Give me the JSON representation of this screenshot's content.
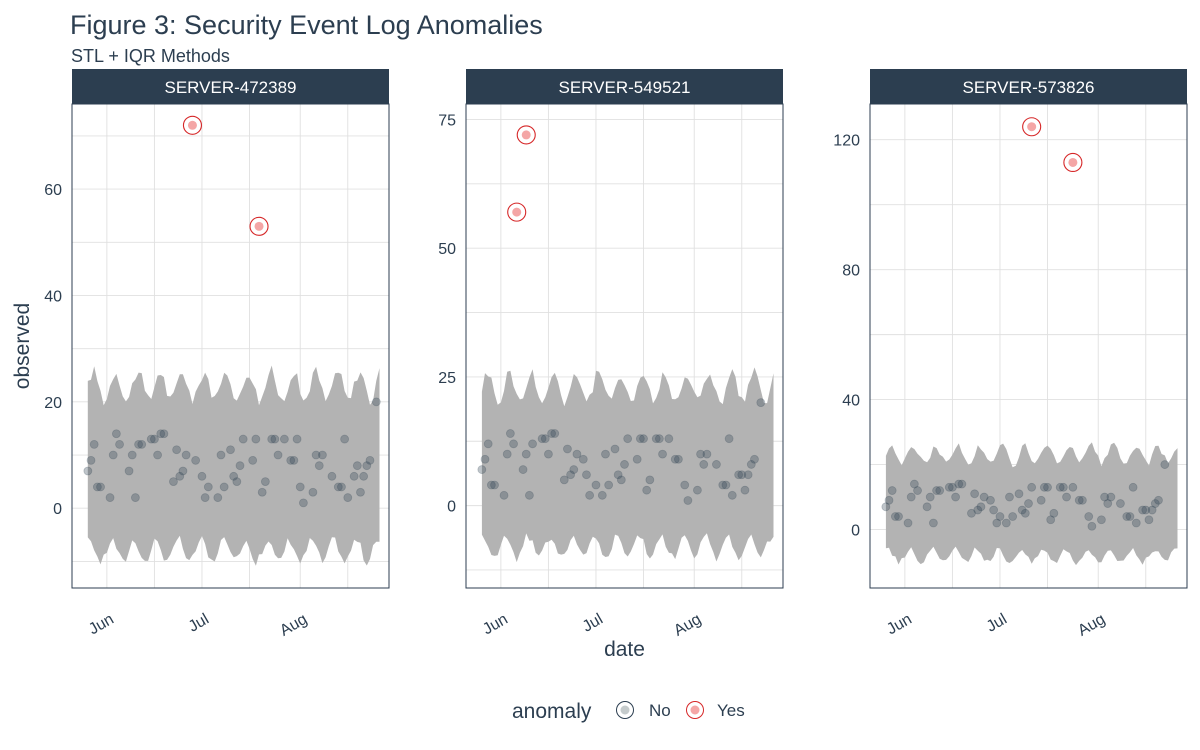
{
  "title": "Figure 3: Security Event Log Anomalies",
  "subtitle": "STL + IQR Methods",
  "colors": {
    "strip_bg": "#2c3e50",
    "band": "#b3b3b3",
    "normal_point": "#2c3e50",
    "anomaly_ring": "#d62728",
    "anomaly_fill": "#f4a6a6",
    "grid": "#e0e0e0",
    "text": "#2c3e50"
  },
  "legend": {
    "title": "anomaly",
    "items": [
      {
        "label": "No",
        "kind": "normal"
      },
      {
        "label": "Yes",
        "kind": "anomaly"
      }
    ]
  },
  "chart_data": [
    {
      "type": "scatter",
      "panel": "SERVER-472389",
      "xlabel": "",
      "ylabel": "observed",
      "x_range": [
        "2023-05-21",
        "2023-08-29"
      ],
      "x_ticks": [
        {
          "label": "Jun",
          "date": "2023-06-01"
        },
        {
          "label": "Jul",
          "date": "2023-07-01"
        },
        {
          "label": "Aug",
          "date": "2023-08-01"
        }
      ],
      "ylim": [
        -15,
        76
      ],
      "y_ticks": [
        0,
        20,
        40,
        60
      ],
      "band": {
        "lower_range": [
          -11,
          -5
        ],
        "upper_range": [
          19,
          27
        ]
      },
      "points": [
        {
          "x": "2023-05-26",
          "y": 7
        },
        {
          "x": "2023-05-27",
          "y": 9
        },
        {
          "x": "2023-05-28",
          "y": 12
        },
        {
          "x": "2023-05-29",
          "y": 4
        },
        {
          "x": "2023-05-30",
          "y": 4
        },
        {
          "x": "2023-06-02",
          "y": 2
        },
        {
          "x": "2023-06-03",
          "y": 10
        },
        {
          "x": "2023-06-04",
          "y": 14
        },
        {
          "x": "2023-06-05",
          "y": 12
        },
        {
          "x": "2023-06-08",
          "y": 7
        },
        {
          "x": "2023-06-09",
          "y": 10
        },
        {
          "x": "2023-06-10",
          "y": 2
        },
        {
          "x": "2023-06-11",
          "y": 12
        },
        {
          "x": "2023-06-12",
          "y": 12
        },
        {
          "x": "2023-06-15",
          "y": 13
        },
        {
          "x": "2023-06-16",
          "y": 13
        },
        {
          "x": "2023-06-17",
          "y": 10
        },
        {
          "x": "2023-06-18",
          "y": 14
        },
        {
          "x": "2023-06-19",
          "y": 14
        },
        {
          "x": "2023-06-22",
          "y": 5
        },
        {
          "x": "2023-06-23",
          "y": 11
        },
        {
          "x": "2023-06-24",
          "y": 6
        },
        {
          "x": "2023-06-25",
          "y": 7
        },
        {
          "x": "2023-06-26",
          "y": 10
        },
        {
          "x": "2023-06-29",
          "y": 9
        },
        {
          "x": "2023-07-01",
          "y": 6
        },
        {
          "x": "2023-07-02",
          "y": 2
        },
        {
          "x": "2023-07-03",
          "y": 4
        },
        {
          "x": "2023-07-06",
          "y": 2
        },
        {
          "x": "2023-07-07",
          "y": 10
        },
        {
          "x": "2023-07-08",
          "y": 4
        },
        {
          "x": "2023-07-10",
          "y": 11
        },
        {
          "x": "2023-07-11",
          "y": 6
        },
        {
          "x": "2023-07-12",
          "y": 5
        },
        {
          "x": "2023-07-13",
          "y": 8
        },
        {
          "x": "2023-07-14",
          "y": 13
        },
        {
          "x": "2023-07-17",
          "y": 9
        },
        {
          "x": "2023-07-18",
          "y": 13
        },
        {
          "x": "2023-07-20",
          "y": 3
        },
        {
          "x": "2023-07-21",
          "y": 5
        },
        {
          "x": "2023-07-23",
          "y": 13
        },
        {
          "x": "2023-07-24",
          "y": 13
        },
        {
          "x": "2023-07-25",
          "y": 10
        },
        {
          "x": "2023-07-27",
          "y": 13
        },
        {
          "x": "2023-07-29",
          "y": 9
        },
        {
          "x": "2023-07-30",
          "y": 9
        },
        {
          "x": "2023-07-31",
          "y": 13
        },
        {
          "x": "2023-08-01",
          "y": 4
        },
        {
          "x": "2023-08-02",
          "y": 1
        },
        {
          "x": "2023-08-05",
          "y": 3
        },
        {
          "x": "2023-08-06",
          "y": 10
        },
        {
          "x": "2023-08-07",
          "y": 8
        },
        {
          "x": "2023-08-08",
          "y": 10
        },
        {
          "x": "2023-08-11",
          "y": 6
        },
        {
          "x": "2023-08-13",
          "y": 4
        },
        {
          "x": "2023-08-14",
          "y": 4
        },
        {
          "x": "2023-08-15",
          "y": 13
        },
        {
          "x": "2023-08-16",
          "y": 2
        },
        {
          "x": "2023-08-18",
          "y": 6
        },
        {
          "x": "2023-08-19",
          "y": 8
        },
        {
          "x": "2023-08-20",
          "y": 3
        },
        {
          "x": "2023-08-21",
          "y": 6
        },
        {
          "x": "2023-08-22",
          "y": 8
        },
        {
          "x": "2023-08-23",
          "y": 9
        },
        {
          "x": "2023-08-25",
          "y": 20
        }
      ],
      "anomalies": [
        {
          "x": "2023-06-28",
          "y": 72
        },
        {
          "x": "2023-07-19",
          "y": 53
        }
      ]
    },
    {
      "type": "scatter",
      "panel": "SERVER-549521",
      "xlabel": "date",
      "ylabel": "",
      "x_range": [
        "2023-05-21",
        "2023-08-29"
      ],
      "x_ticks": [
        {
          "label": "Jun",
          "date": "2023-06-01"
        },
        {
          "label": "Jul",
          "date": "2023-07-01"
        },
        {
          "label": "Aug",
          "date": "2023-08-01"
        }
      ],
      "ylim": [
        -16,
        78
      ],
      "y_ticks": [
        0,
        25,
        50,
        75
      ],
      "band": {
        "lower_range": [
          -11,
          -5
        ],
        "upper_range": [
          19,
          27
        ]
      },
      "points": [
        {
          "x": "2023-05-26",
          "y": 7
        },
        {
          "x": "2023-05-27",
          "y": 9
        },
        {
          "x": "2023-05-28",
          "y": 12
        },
        {
          "x": "2023-05-29",
          "y": 4
        },
        {
          "x": "2023-05-30",
          "y": 4
        },
        {
          "x": "2023-06-02",
          "y": 2
        },
        {
          "x": "2023-06-03",
          "y": 10
        },
        {
          "x": "2023-06-04",
          "y": 14
        },
        {
          "x": "2023-06-05",
          "y": 12
        },
        {
          "x": "2023-06-08",
          "y": 7
        },
        {
          "x": "2023-06-09",
          "y": 10
        },
        {
          "x": "2023-06-10",
          "y": 2
        },
        {
          "x": "2023-06-11",
          "y": 12
        },
        {
          "x": "2023-06-14",
          "y": 13
        },
        {
          "x": "2023-06-15",
          "y": 13
        },
        {
          "x": "2023-06-16",
          "y": 10
        },
        {
          "x": "2023-06-17",
          "y": 14
        },
        {
          "x": "2023-06-18",
          "y": 14
        },
        {
          "x": "2023-06-21",
          "y": 5
        },
        {
          "x": "2023-06-22",
          "y": 11
        },
        {
          "x": "2023-06-23",
          "y": 6
        },
        {
          "x": "2023-06-24",
          "y": 7
        },
        {
          "x": "2023-06-25",
          "y": 10
        },
        {
          "x": "2023-06-27",
          "y": 9
        },
        {
          "x": "2023-06-28",
          "y": 6
        },
        {
          "x": "2023-06-29",
          "y": 2
        },
        {
          "x": "2023-07-01",
          "y": 4
        },
        {
          "x": "2023-07-03",
          "y": 2
        },
        {
          "x": "2023-07-04",
          "y": 10
        },
        {
          "x": "2023-07-05",
          "y": 4
        },
        {
          "x": "2023-07-07",
          "y": 11
        },
        {
          "x": "2023-07-08",
          "y": 6
        },
        {
          "x": "2023-07-09",
          "y": 5
        },
        {
          "x": "2023-07-10",
          "y": 8
        },
        {
          "x": "2023-07-11",
          "y": 13
        },
        {
          "x": "2023-07-14",
          "y": 9
        },
        {
          "x": "2023-07-15",
          "y": 13
        },
        {
          "x": "2023-07-16",
          "y": 13
        },
        {
          "x": "2023-07-17",
          "y": 3
        },
        {
          "x": "2023-07-18",
          "y": 5
        },
        {
          "x": "2023-07-20",
          "y": 13
        },
        {
          "x": "2023-07-21",
          "y": 13
        },
        {
          "x": "2023-07-22",
          "y": 10
        },
        {
          "x": "2023-07-24",
          "y": 13
        },
        {
          "x": "2023-07-26",
          "y": 9
        },
        {
          "x": "2023-07-27",
          "y": 9
        },
        {
          "x": "2023-07-29",
          "y": 4
        },
        {
          "x": "2023-07-30",
          "y": 1
        },
        {
          "x": "2023-08-02",
          "y": 3
        },
        {
          "x": "2023-08-03",
          "y": 10
        },
        {
          "x": "2023-08-04",
          "y": 8
        },
        {
          "x": "2023-08-05",
          "y": 10
        },
        {
          "x": "2023-08-08",
          "y": 8
        },
        {
          "x": "2023-08-10",
          "y": 4
        },
        {
          "x": "2023-08-11",
          "y": 4
        },
        {
          "x": "2023-08-12",
          "y": 13
        },
        {
          "x": "2023-08-13",
          "y": 2
        },
        {
          "x": "2023-08-15",
          "y": 6
        },
        {
          "x": "2023-08-16",
          "y": 6
        },
        {
          "x": "2023-08-17",
          "y": 3
        },
        {
          "x": "2023-08-18",
          "y": 6
        },
        {
          "x": "2023-08-19",
          "y": 8
        },
        {
          "x": "2023-08-20",
          "y": 9
        },
        {
          "x": "2023-08-22",
          "y": 20
        }
      ],
      "anomalies": [
        {
          "x": "2023-06-06",
          "y": 57
        },
        {
          "x": "2023-06-09",
          "y": 72
        }
      ]
    },
    {
      "type": "scatter",
      "panel": "SERVER-573826",
      "xlabel": "",
      "ylabel": "",
      "x_range": [
        "2023-05-21",
        "2023-08-29"
      ],
      "x_ticks": [
        {
          "label": "Jun",
          "date": "2023-06-01"
        },
        {
          "label": "Jul",
          "date": "2023-07-01"
        },
        {
          "label": "Aug",
          "date": "2023-08-01"
        }
      ],
      "ylim": [
        -18,
        131
      ],
      "y_ticks": [
        0,
        40,
        80,
        120
      ],
      "band": {
        "lower_range": [
          -11,
          -5
        ],
        "upper_range": [
          19,
          27
        ]
      },
      "points": [
        {
          "x": "2023-05-26",
          "y": 7
        },
        {
          "x": "2023-05-27",
          "y": 9
        },
        {
          "x": "2023-05-28",
          "y": 12
        },
        {
          "x": "2023-05-29",
          "y": 4
        },
        {
          "x": "2023-05-30",
          "y": 4
        },
        {
          "x": "2023-06-02",
          "y": 2
        },
        {
          "x": "2023-06-03",
          "y": 10
        },
        {
          "x": "2023-06-04",
          "y": 14
        },
        {
          "x": "2023-06-05",
          "y": 12
        },
        {
          "x": "2023-06-08",
          "y": 7
        },
        {
          "x": "2023-06-09",
          "y": 10
        },
        {
          "x": "2023-06-10",
          "y": 2
        },
        {
          "x": "2023-06-11",
          "y": 12
        },
        {
          "x": "2023-06-12",
          "y": 12
        },
        {
          "x": "2023-06-15",
          "y": 13
        },
        {
          "x": "2023-06-16",
          "y": 13
        },
        {
          "x": "2023-06-17",
          "y": 10
        },
        {
          "x": "2023-06-18",
          "y": 14
        },
        {
          "x": "2023-06-19",
          "y": 14
        },
        {
          "x": "2023-06-22",
          "y": 5
        },
        {
          "x": "2023-06-23",
          "y": 11
        },
        {
          "x": "2023-06-24",
          "y": 6
        },
        {
          "x": "2023-06-25",
          "y": 7
        },
        {
          "x": "2023-06-26",
          "y": 10
        },
        {
          "x": "2023-06-28",
          "y": 9
        },
        {
          "x": "2023-06-29",
          "y": 6
        },
        {
          "x": "2023-06-30",
          "y": 2
        },
        {
          "x": "2023-07-01",
          "y": 4
        },
        {
          "x": "2023-07-03",
          "y": 2
        },
        {
          "x": "2023-07-04",
          "y": 10
        },
        {
          "x": "2023-07-05",
          "y": 4
        },
        {
          "x": "2023-07-07",
          "y": 11
        },
        {
          "x": "2023-07-08",
          "y": 6
        },
        {
          "x": "2023-07-09",
          "y": 5
        },
        {
          "x": "2023-07-10",
          "y": 8
        },
        {
          "x": "2023-07-11",
          "y": 13
        },
        {
          "x": "2023-07-14",
          "y": 9
        },
        {
          "x": "2023-07-15",
          "y": 13
        },
        {
          "x": "2023-07-16",
          "y": 13
        },
        {
          "x": "2023-07-17",
          "y": 3
        },
        {
          "x": "2023-07-18",
          "y": 5
        },
        {
          "x": "2023-07-20",
          "y": 13
        },
        {
          "x": "2023-07-21",
          "y": 13
        },
        {
          "x": "2023-07-22",
          "y": 10
        },
        {
          "x": "2023-07-24",
          "y": 13
        },
        {
          "x": "2023-07-26",
          "y": 9
        },
        {
          "x": "2023-07-27",
          "y": 9
        },
        {
          "x": "2023-07-29",
          "y": 4
        },
        {
          "x": "2023-07-30",
          "y": 1
        },
        {
          "x": "2023-08-02",
          "y": 3
        },
        {
          "x": "2023-08-03",
          "y": 10
        },
        {
          "x": "2023-08-04",
          "y": 8
        },
        {
          "x": "2023-08-05",
          "y": 10
        },
        {
          "x": "2023-08-08",
          "y": 8
        },
        {
          "x": "2023-08-10",
          "y": 4
        },
        {
          "x": "2023-08-11",
          "y": 4
        },
        {
          "x": "2023-08-12",
          "y": 13
        },
        {
          "x": "2023-08-13",
          "y": 2
        },
        {
          "x": "2023-08-15",
          "y": 6
        },
        {
          "x": "2023-08-16",
          "y": 6
        },
        {
          "x": "2023-08-17",
          "y": 3
        },
        {
          "x": "2023-08-18",
          "y": 6
        },
        {
          "x": "2023-08-19",
          "y": 8
        },
        {
          "x": "2023-08-20",
          "y": 9
        },
        {
          "x": "2023-08-22",
          "y": 20
        }
      ],
      "anomalies": [
        {
          "x": "2023-07-11",
          "y": 124
        },
        {
          "x": "2023-07-24",
          "y": 113
        }
      ]
    }
  ]
}
